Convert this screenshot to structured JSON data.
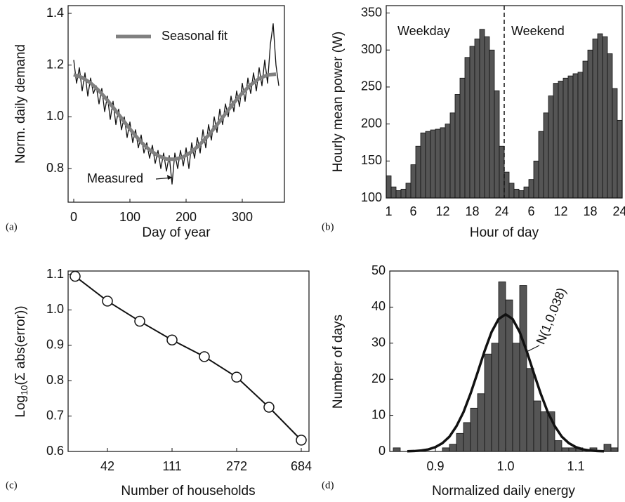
{
  "chart_data": [
    {
      "type": "line",
      "panel_label": "(a)",
      "x_label": "Day of year",
      "y_label": "Norm. daily demand",
      "annotation": "Measured",
      "xlim": [
        -10,
        375
      ],
      "xticks": [
        0,
        100,
        200,
        300
      ],
      "ylim": [
        0.67,
        1.43
      ],
      "yticks": [
        0.8,
        {
          "value": 1,
          "label": "1.0"
        },
        1.2,
        1.4
      ],
      "series": [
        {
          "name": "Measured",
          "color": "#111111",
          "x": [
            0,
            5,
            10,
            15,
            20,
            25,
            30,
            35,
            40,
            45,
            50,
            55,
            60,
            65,
            70,
            75,
            80,
            85,
            90,
            95,
            100,
            105,
            110,
            115,
            120,
            125,
            130,
            135,
            140,
            145,
            150,
            155,
            160,
            165,
            170,
            175,
            180,
            185,
            190,
            195,
            200,
            205,
            210,
            215,
            220,
            225,
            230,
            235,
            240,
            245,
            250,
            255,
            260,
            265,
            270,
            275,
            280,
            285,
            290,
            295,
            300,
            305,
            310,
            315,
            320,
            325,
            330,
            335,
            340,
            345,
            350,
            355,
            360,
            365
          ],
          "values": [
            1.22,
            1.13,
            1.19,
            1.1,
            1.17,
            1.08,
            1.15,
            1.09,
            1.12,
            1.05,
            1.11,
            1.02,
            1.08,
            0.99,
            1.06,
            0.97,
            1.03,
            0.95,
            1.0,
            0.92,
            0.98,
            0.9,
            0.95,
            0.88,
            0.93,
            0.86,
            0.9,
            0.84,
            0.89,
            0.82,
            0.87,
            0.8,
            0.86,
            0.79,
            0.85,
            0.74,
            0.86,
            0.8,
            0.87,
            0.81,
            0.88,
            0.8,
            0.9,
            0.84,
            0.92,
            0.86,
            0.95,
            0.88,
            0.97,
            0.91,
            1.0,
            0.94,
            1.03,
            0.97,
            1.05,
            1.0,
            1.08,
            1.02,
            1.1,
            1.04,
            1.13,
            1.06,
            1.15,
            1.09,
            1.17,
            1.1,
            1.19,
            1.12,
            1.22,
            1.13,
            1.28,
            1.36,
            1.2,
            1.12
          ]
        },
        {
          "name": "Seasonal fit",
          "color": "#808080",
          "x": [
            0,
            15,
            30,
            45,
            60,
            75,
            90,
            105,
            120,
            135,
            150,
            165,
            180,
            195,
            210,
            225,
            240,
            255,
            270,
            285,
            300,
            315,
            330,
            345,
            360
          ],
          "values": [
            1.163,
            1.152,
            1.131,
            1.101,
            1.064,
            1.023,
            0.981,
            0.94,
            0.902,
            0.872,
            0.85,
            0.837,
            0.836,
            0.845,
            0.865,
            0.894,
            0.929,
            0.969,
            1.012,
            1.054,
            1.092,
            1.124,
            1.148,
            1.162,
            1.165
          ]
        }
      ]
    },
    {
      "type": "bar",
      "panel_label": "(b)",
      "x_label": "Hour of day",
      "y_label": "Hourly mean power (W)",
      "annotations": [
        "Weekday",
        "Weekend"
      ],
      "color": "#555555",
      "categories": [
        "1",
        null,
        null,
        null,
        null,
        "6",
        null,
        null,
        null,
        null,
        null,
        "12",
        null,
        null,
        null,
        null,
        null,
        "18",
        null,
        null,
        null,
        null,
        null,
        "24",
        null,
        null,
        null,
        null,
        null,
        "6",
        null,
        null,
        null,
        null,
        null,
        "12",
        null,
        null,
        null,
        null,
        null,
        "18",
        null,
        null,
        null,
        null,
        null,
        "24"
      ],
      "values": [
        130,
        115,
        110,
        112,
        120,
        145,
        170,
        188,
        190,
        192,
        193,
        195,
        200,
        215,
        240,
        262,
        290,
        305,
        315,
        328,
        318,
        300,
        245,
        170,
        135,
        120,
        112,
        110,
        115,
        125,
        150,
        190,
        215,
        238,
        255,
        258,
        262,
        265,
        268,
        270,
        285,
        300,
        315,
        322,
        318,
        295,
        248,
        205
      ],
      "ylim": [
        100,
        360
      ],
      "yticks": [
        100,
        150,
        200,
        250,
        300,
        350
      ]
    },
    {
      "type": "line",
      "panel_label": "(c)",
      "x_label": "Number of households",
      "y_label": [
        "Log",
        "10",
        "(Σ abs(error))"
      ],
      "color": "#111111",
      "categories": [
        null,
        "42",
        null,
        "111",
        null,
        "272",
        null,
        "684"
      ],
      "values": [
        1.095,
        1.025,
        0.968,
        0.915,
        0.868,
        0.81,
        0.725,
        0.632
      ],
      "ylim": [
        0.6,
        1.11
      ],
      "yticks": [
        0.6,
        0.7,
        0.8,
        0.9,
        {
          "value": 1,
          "label": "1.0"
        },
        1.1
      ]
    },
    {
      "type": "histogram",
      "panel_label": "(d)",
      "x_label": "Normalized daily energy",
      "y_label": "Number of days",
      "annotation": "N(1,0.038)",
      "color": "#555555",
      "bins": [
        0.84,
        0.85,
        0.86,
        0.87,
        0.88,
        0.89,
        0.9,
        0.91,
        0.92,
        0.93,
        0.94,
        0.95,
        0.96,
        0.97,
        0.98,
        0.99,
        1.0,
        1.01,
        1.02,
        1.03,
        1.04,
        1.05,
        1.06,
        1.07,
        1.08,
        1.09,
        1.1,
        1.11,
        1.12,
        1.13,
        1.14,
        1.15,
        1.16
      ],
      "values": [
        1,
        0,
        0,
        0,
        0,
        0,
        0,
        1,
        2,
        5,
        8,
        12,
        16,
        27,
        30,
        47,
        42,
        30,
        46,
        23,
        14,
        11,
        11,
        3,
        1,
        1,
        1,
        0,
        1,
        0,
        2,
        1
      ],
      "curve": {
        "color": "#111111",
        "x": [
          0.86,
          0.87,
          0.88,
          0.89,
          0.9,
          0.91,
          0.92,
          0.93,
          0.94,
          0.95,
          0.96,
          0.97,
          0.98,
          0.99,
          1.0,
          1.01,
          1.02,
          1.03,
          1.04,
          1.05,
          1.06,
          1.07,
          1.08,
          1.09,
          1.1,
          1.11,
          1.12,
          1.13,
          1.14
        ],
        "values": [
          0.04,
          0.11,
          0.26,
          0.57,
          1.2,
          2.3,
          4.1,
          7.0,
          10.9,
          16.0,
          21.8,
          27.8,
          33.1,
          36.7,
          38,
          36.7,
          33.1,
          27.8,
          21.8,
          16.0,
          10.9,
          7.0,
          4.1,
          2.3,
          1.2,
          0.57,
          0.26,
          0.11,
          0.04
        ]
      },
      "xlim": [
        0.835,
        1.16
      ],
      "xticks": [
        0.9,
        {
          "value": 1,
          "label": "1.0"
        },
        1.1
      ],
      "ylim": [
        0,
        50
      ],
      "yticks": [
        0,
        10,
        20,
        30,
        40,
        50
      ]
    }
  ]
}
